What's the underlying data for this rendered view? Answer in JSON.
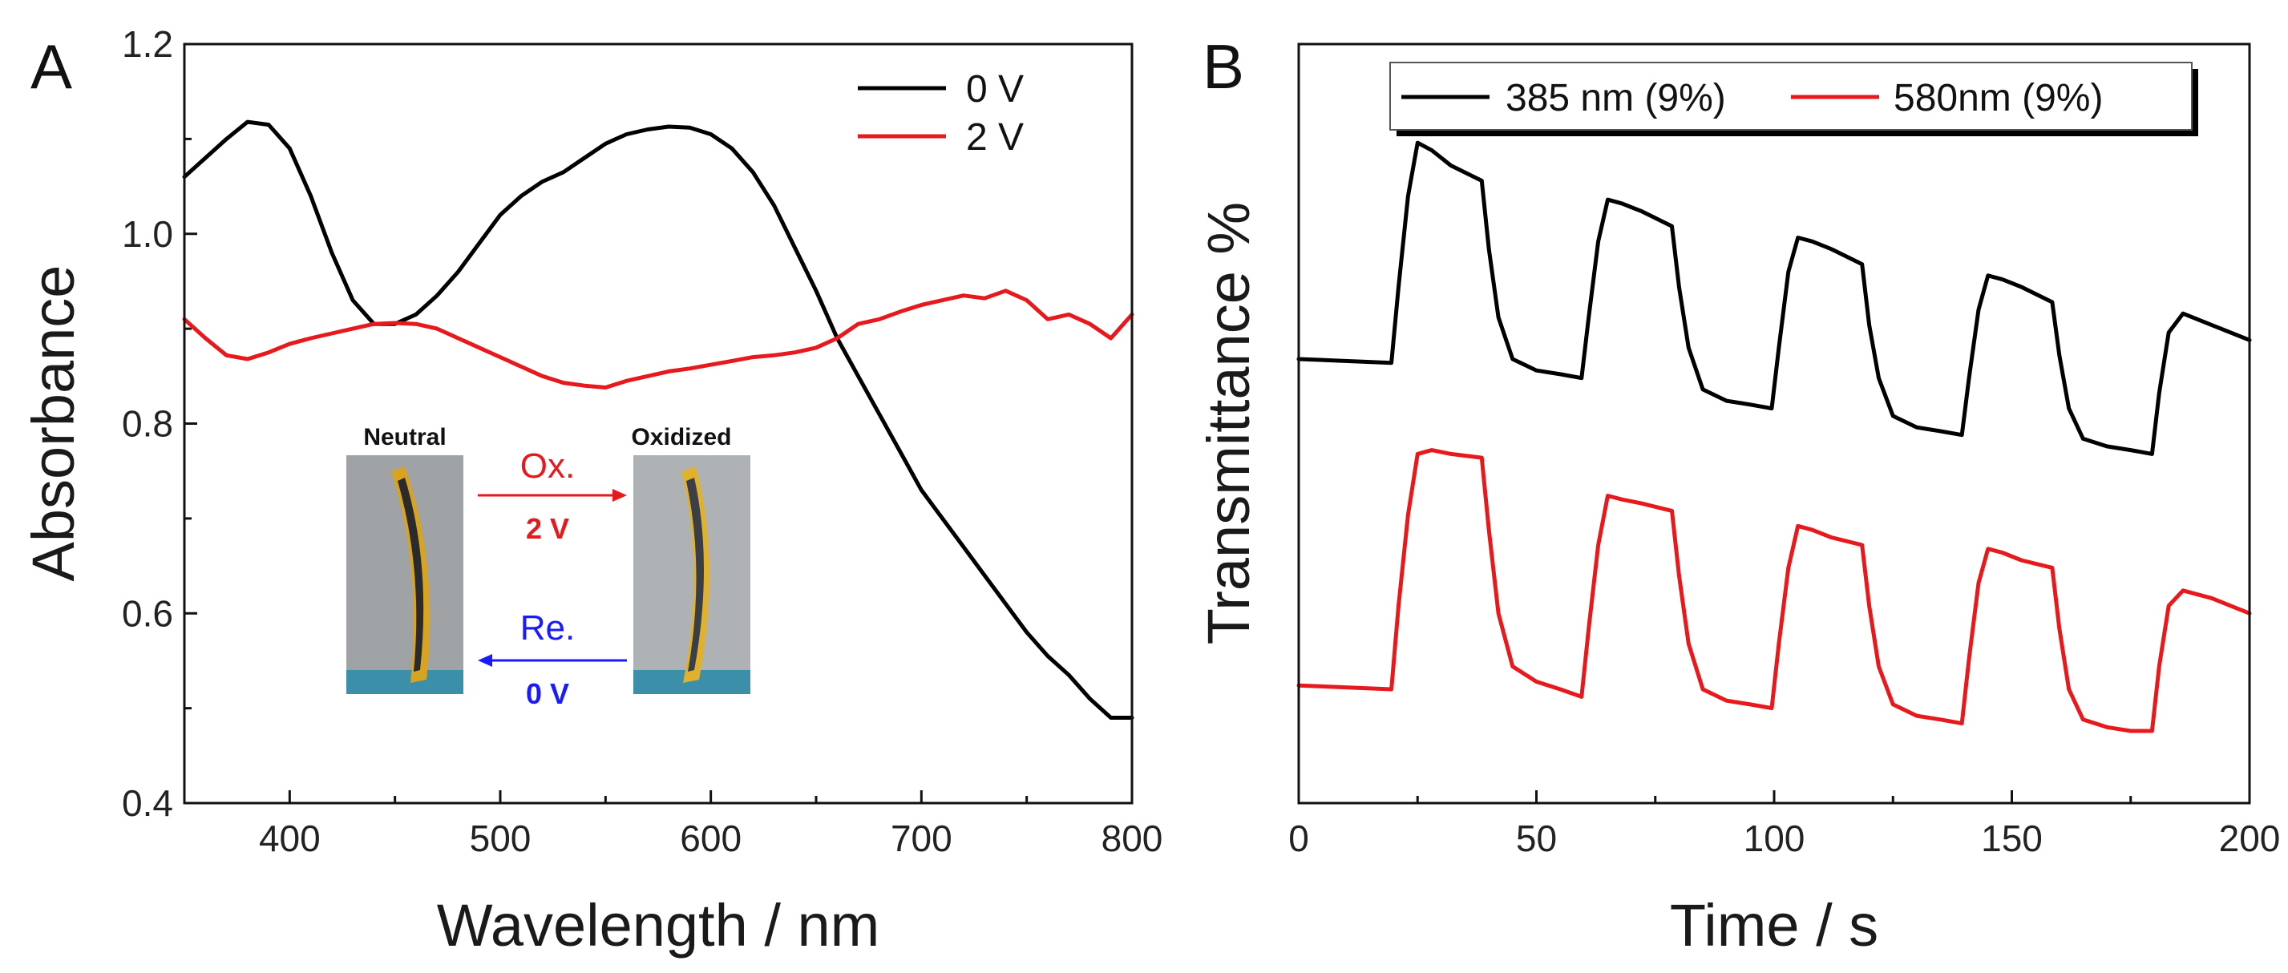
{
  "chart_data": [
    {
      "type": "line",
      "panel": "A",
      "xlabel": "Wavelength / nm",
      "ylabel": "Absorbance",
      "xlim": [
        350,
        800
      ],
      "ylim": [
        0.4,
        1.2
      ],
      "xticks": [
        400,
        500,
        600,
        700,
        800
      ],
      "yticks": [
        0.4,
        0.6,
        0.8,
        1.0,
        1.2
      ],
      "xtick_labels": [
        "400",
        "500",
        "600",
        "700",
        "800"
      ],
      "ytick_labels": [
        "0.4",
        "0.6",
        "0.8",
        "1.0",
        "1.2"
      ],
      "legend": {
        "position": "top-right",
        "entries": [
          "0 V",
          "2 V"
        ]
      },
      "series": [
        {
          "name": "0 V",
          "color": "#000000",
          "x": [
            350,
            360,
            370,
            380,
            390,
            400,
            410,
            420,
            430,
            440,
            450,
            460,
            470,
            480,
            490,
            500,
            510,
            520,
            530,
            540,
            550,
            560,
            570,
            580,
            590,
            600,
            610,
            620,
            630,
            640,
            650,
            660,
            670,
            680,
            690,
            700,
            710,
            720,
            730,
            740,
            750,
            760,
            770,
            780,
            790,
            800
          ],
          "y": [
            1.06,
            1.08,
            1.1,
            1.118,
            1.115,
            1.09,
            1.04,
            0.98,
            0.93,
            0.905,
            0.905,
            0.915,
            0.935,
            0.96,
            0.99,
            1.02,
            1.04,
            1.055,
            1.065,
            1.08,
            1.095,
            1.105,
            1.11,
            1.113,
            1.112,
            1.105,
            1.09,
            1.065,
            1.03,
            0.985,
            0.94,
            0.89,
            0.85,
            0.81,
            0.77,
            0.73,
            0.7,
            0.67,
            0.64,
            0.61,
            0.58,
            0.555,
            0.535,
            0.51,
            0.49,
            0.49
          ]
        },
        {
          "name": "2 V",
          "color": "#e8191c",
          "x": [
            350,
            360,
            370,
            380,
            390,
            400,
            410,
            420,
            430,
            440,
            450,
            460,
            470,
            480,
            490,
            500,
            510,
            520,
            530,
            540,
            550,
            560,
            570,
            580,
            590,
            600,
            610,
            620,
            630,
            640,
            650,
            660,
            670,
            680,
            690,
            700,
            710,
            720,
            730,
            740,
            750,
            760,
            770,
            780,
            790,
            800
          ],
          "y": [
            0.91,
            0.89,
            0.872,
            0.868,
            0.875,
            0.884,
            0.89,
            0.895,
            0.9,
            0.905,
            0.906,
            0.905,
            0.9,
            0.89,
            0.88,
            0.87,
            0.86,
            0.85,
            0.843,
            0.84,
            0.838,
            0.845,
            0.85,
            0.855,
            0.858,
            0.862,
            0.866,
            0.87,
            0.872,
            0.875,
            0.88,
            0.89,
            0.905,
            0.91,
            0.918,
            0.925,
            0.93,
            0.935,
            0.932,
            0.94,
            0.93,
            0.91,
            0.915,
            0.905,
            0.89,
            0.915
          ]
        }
      ],
      "inset": {
        "left_label": "Neutral",
        "right_label": "Oxidized",
        "top_arrow_label": "Ox.",
        "top_arrow_voltage": "2 V",
        "bottom_arrow_label": "Re.",
        "bottom_arrow_voltage": "0 V",
        "top_color": "#e8191c",
        "bottom_color": "#1a1aff"
      }
    },
    {
      "type": "line",
      "panel": "B",
      "xlabel": "Time / s",
      "ylabel": "Transmittance %",
      "xlim": [
        0,
        200
      ],
      "ylim": [
        0,
        100
      ],
      "xticks": [
        0,
        50,
        100,
        150,
        200
      ],
      "xtick_labels": [
        "0",
        "50",
        "100",
        "150",
        "200"
      ],
      "legend": {
        "position": "top",
        "entries": [
          "385 nm (9%)",
          "580nm (9%)"
        ]
      },
      "series": [
        {
          "name": "385 nm (9%)",
          "color": "#000000",
          "x": [
            0,
            19.5,
            21,
            23,
            25,
            28,
            32,
            38.5,
            40,
            42,
            45,
            50,
            55,
            59.5,
            61,
            63,
            65,
            68,
            72,
            78.5,
            80,
            82,
            85,
            90,
            95,
            99.5,
            101,
            103,
            105,
            108,
            112,
            118.5,
            120,
            122,
            125,
            130,
            135,
            139.5,
            141,
            143,
            145,
            148,
            152,
            158.5,
            160,
            162,
            165,
            170,
            175,
            179.5,
            181,
            183,
            186,
            192,
            200
          ],
          "y": [
            58.5,
            58,
            68,
            80,
            87,
            86,
            84,
            82,
            73,
            64,
            58.5,
            57,
            56.5,
            56,
            64,
            74,
            79.5,
            79,
            78,
            76,
            68,
            60,
            54.5,
            53,
            52.5,
            52,
            60,
            70,
            74.5,
            74,
            73,
            71,
            63,
            56,
            51,
            49.5,
            49,
            48.5,
            56,
            65,
            69.5,
            69,
            68,
            66,
            59,
            52,
            48,
            47,
            46.5,
            46,
            54,
            62,
            64.5,
            63,
            61
          ]
        },
        {
          "name": "580nm (9%)",
          "color": "#e8191c",
          "x": [
            0,
            19.5,
            21,
            23,
            25,
            28,
            32,
            38.5,
            40,
            42,
            45,
            50,
            55,
            59.5,
            61,
            63,
            65,
            68,
            72,
            78.5,
            80,
            82,
            85,
            90,
            95,
            99.5,
            101,
            103,
            105,
            108,
            112,
            118.5,
            120,
            122,
            125,
            130,
            135,
            139.5,
            141,
            143,
            145,
            148,
            152,
            158.5,
            160,
            162,
            165,
            170,
            175,
            179.5,
            181,
            183,
            186,
            192,
            200
          ],
          "y": [
            15.5,
            15,
            26,
            38,
            46,
            46.5,
            46,
            45.5,
            36,
            25,
            18,
            16,
            15,
            14,
            23,
            34,
            40.5,
            40,
            39.5,
            38.5,
            30,
            21,
            15,
            13.5,
            13,
            12.5,
            21,
            31,
            36.5,
            36,
            35,
            34,
            26,
            18,
            13,
            11.5,
            11,
            10.5,
            19,
            29,
            33.5,
            33,
            32,
            31,
            23,
            15,
            11,
            10,
            9.5,
            9.5,
            18,
            26,
            28,
            27,
            25
          ]
        }
      ]
    }
  ]
}
